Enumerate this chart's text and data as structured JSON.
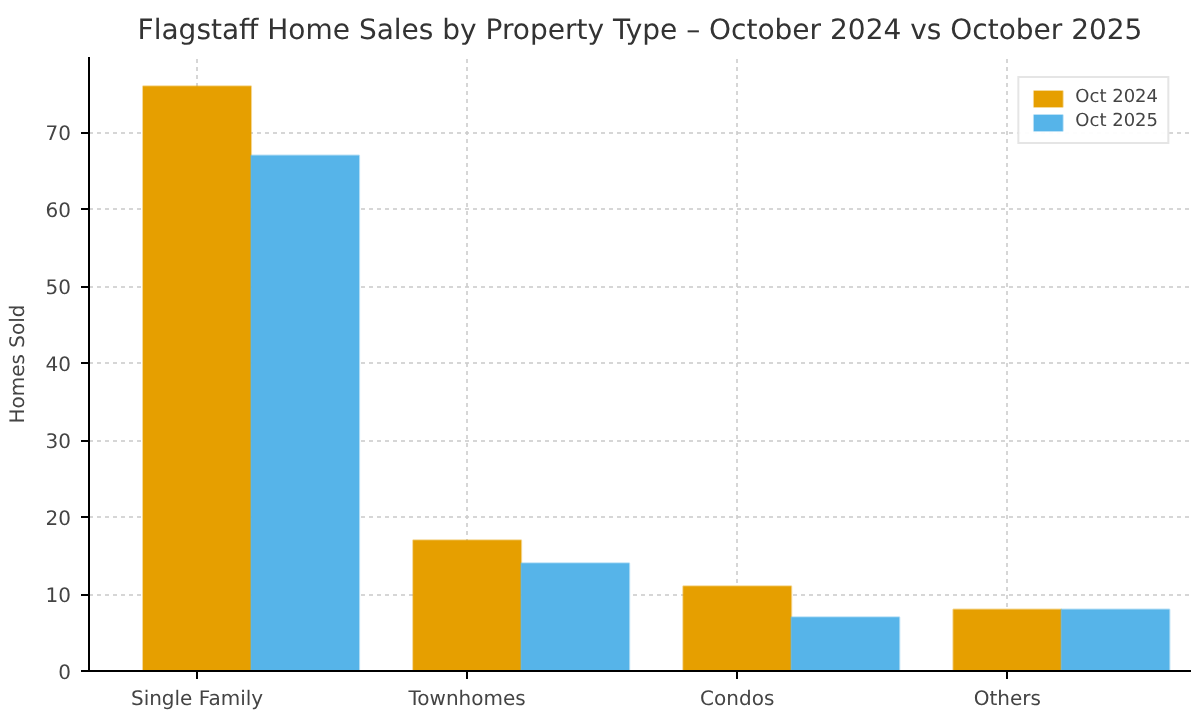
{
  "chart_data": {
    "type": "bar",
    "title": "Flagstaff Home Sales by Property Type – October 2024 vs October 2025",
    "ylabel": "Homes Sold",
    "categories": [
      "Single Family",
      "Townhomes",
      "Condos",
      "Others"
    ],
    "series": [
      {
        "name": "Oct 2024",
        "color": "#e69f00",
        "values": [
          76,
          17,
          11,
          8
        ]
      },
      {
        "name": "Oct 2025",
        "color": "#56b4e9",
        "values": [
          67,
          14,
          7,
          8
        ]
      }
    ],
    "ylim": [
      0,
      79.8
    ],
    "yticks": [
      0,
      10,
      20,
      30,
      40,
      50,
      60,
      70
    ],
    "grid": true,
    "legend": "top right"
  }
}
